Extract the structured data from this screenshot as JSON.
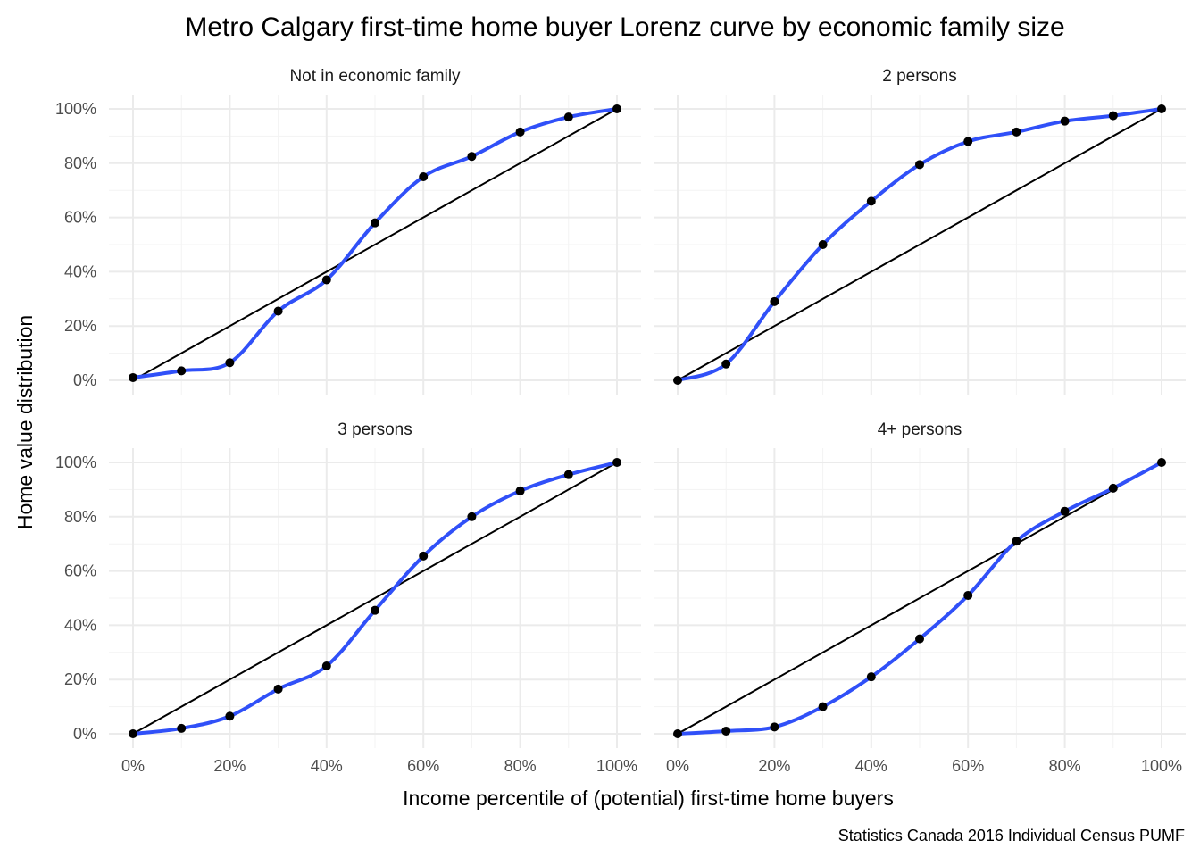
{
  "chart_data": {
    "type": "line",
    "title": "Metro Calgary first-time home buyer Lorenz curve by economic family size",
    "xlabel": "Income percentile of (potential) first-time home buyers",
    "ylabel": "Home value distribution",
    "caption": "Statistics Canada 2016 Individual Census PUMF",
    "xlim": [
      0,
      1
    ],
    "ylim": [
      0,
      1
    ],
    "x_ticks": [
      "0%",
      "20%",
      "40%",
      "60%",
      "80%",
      "100%"
    ],
    "y_ticks": [
      "0%",
      "20%",
      "40%",
      "60%",
      "80%",
      "100%"
    ],
    "grid": true,
    "colors": {
      "curve": "#3050f8",
      "equality_line": "#000000",
      "points": "#000000"
    },
    "x": [
      0,
      0.1,
      0.2,
      0.3,
      0.4,
      0.5,
      0.6,
      0.7,
      0.8,
      0.9,
      1.0
    ],
    "panels": [
      {
        "name": "Not in economic family",
        "values": [
          0.01,
          0.035,
          0.065,
          0.255,
          0.37,
          0.58,
          0.75,
          0.825,
          0.915,
          0.97,
          1.0
        ]
      },
      {
        "name": "2 persons",
        "values": [
          0.0,
          0.06,
          0.29,
          0.5,
          0.66,
          0.795,
          0.88,
          0.915,
          0.955,
          0.975,
          1.0
        ]
      },
      {
        "name": "3 persons",
        "values": [
          0.0,
          0.02,
          0.065,
          0.165,
          0.25,
          0.455,
          0.655,
          0.8,
          0.895,
          0.955,
          1.0
        ]
      },
      {
        "name": "4+ persons",
        "values": [
          0.0,
          0.01,
          0.025,
          0.1,
          0.21,
          0.35,
          0.51,
          0.71,
          0.82,
          0.905,
          1.0
        ]
      }
    ]
  }
}
